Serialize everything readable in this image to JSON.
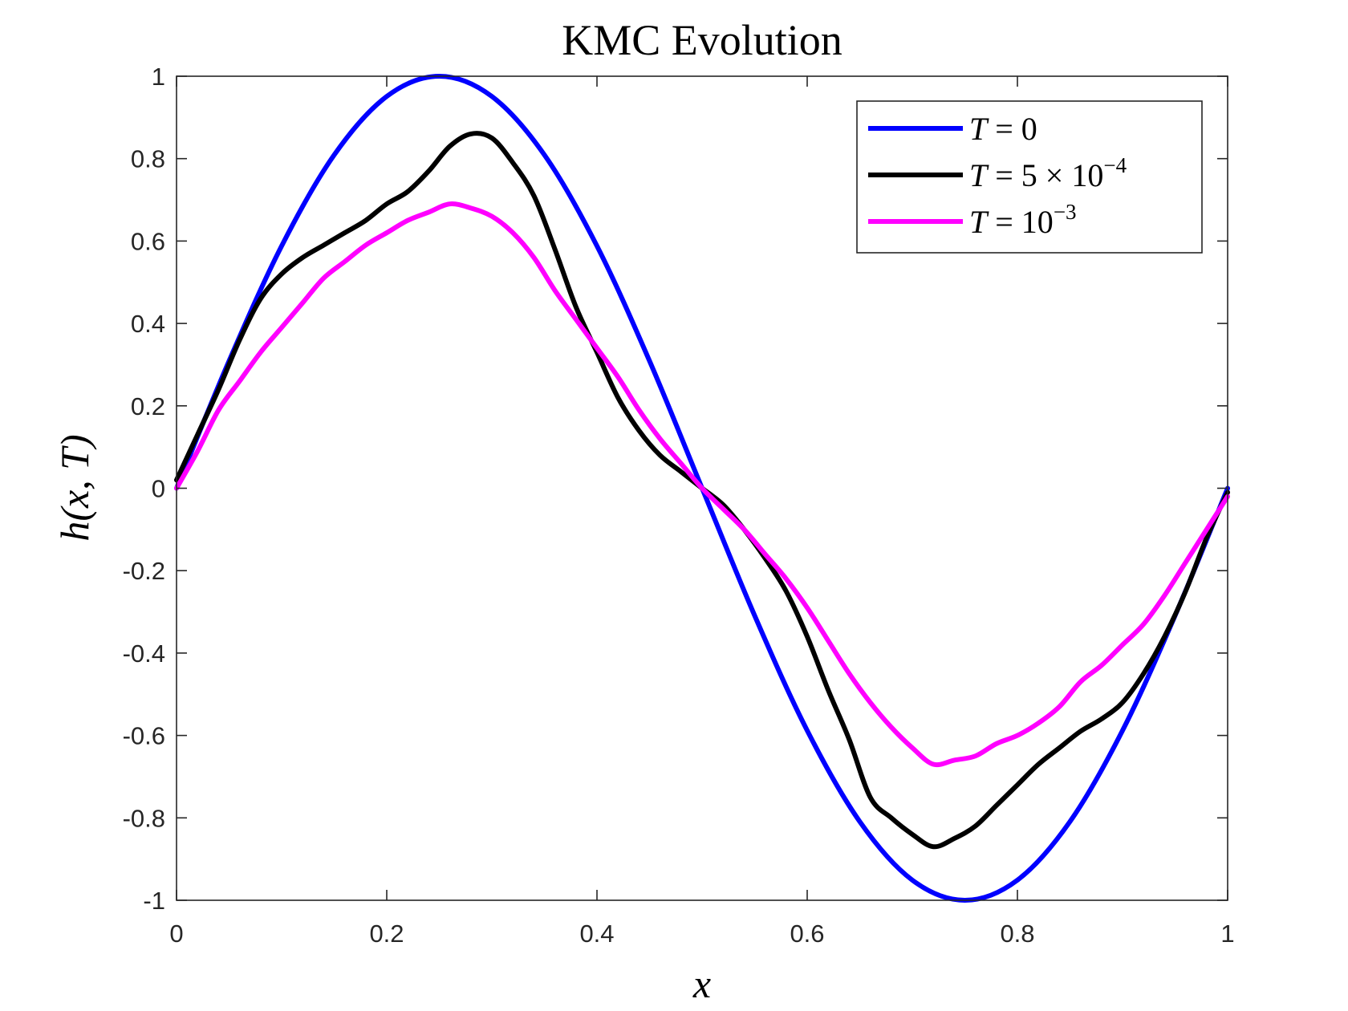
{
  "chart_data": {
    "type": "line",
    "title": "KMC Evolution",
    "xlabel": "x",
    "ylabel": "h(x, T)",
    "xlim": [
      0,
      1
    ],
    "ylim": [
      -1,
      1
    ],
    "xticks": [
      0,
      0.2,
      0.4,
      0.6,
      0.8,
      1
    ],
    "xtick_labels": [
      "0",
      "0.2",
      "0.4",
      "0.6",
      "0.8",
      "1"
    ],
    "yticks": [
      1,
      0.8,
      0.6,
      0.4,
      0.2,
      0,
      -0.2,
      -0.4,
      -0.6,
      -0.8,
      -1
    ],
    "ytick_labels": [
      "1",
      "0.8",
      "0.6",
      "0.4",
      "0.2",
      "0",
      "-0.2",
      "-0.4",
      "-0.6",
      "-0.8",
      "-1"
    ],
    "grid": false,
    "legend_position": "top-right",
    "series": [
      {
        "name": "T = 0",
        "legend": {
          "lhs": "T",
          "rel": " = ",
          "base": "0",
          "exp": ""
        },
        "color": "#0000ff",
        "x": [
          0,
          0.05,
          0.1,
          0.15,
          0.2,
          0.25,
          0.3,
          0.35,
          0.4,
          0.45,
          0.5,
          0.55,
          0.6,
          0.65,
          0.7,
          0.75,
          0.8,
          0.85,
          0.9,
          0.95,
          1
        ],
        "y": [
          0,
          0.309,
          0.588,
          0.809,
          0.951,
          1,
          0.951,
          0.809,
          0.588,
          0.309,
          0,
          -0.309,
          -0.588,
          -0.809,
          -0.951,
          -1,
          -0.951,
          -0.809,
          -0.588,
          -0.309,
          0
        ]
      },
      {
        "name": "T = 5 × 10^-4",
        "legend": {
          "lhs": "T",
          "rel": " = ",
          "base": "5 × 10",
          "exp": "−4"
        },
        "color": "#000000",
        "x": [
          0,
          0.02,
          0.04,
          0.06,
          0.08,
          0.1,
          0.12,
          0.14,
          0.16,
          0.18,
          0.2,
          0.22,
          0.24,
          0.26,
          0.28,
          0.3,
          0.32,
          0.34,
          0.36,
          0.38,
          0.4,
          0.42,
          0.44,
          0.46,
          0.48,
          0.5,
          0.52,
          0.54,
          0.56,
          0.58,
          0.6,
          0.62,
          0.64,
          0.66,
          0.68,
          0.7,
          0.72,
          0.74,
          0.76,
          0.78,
          0.8,
          0.82,
          0.84,
          0.86,
          0.88,
          0.9,
          0.92,
          0.94,
          0.96,
          0.98,
          1
        ],
        "y": [
          0.02,
          0.13,
          0.24,
          0.36,
          0.46,
          0.52,
          0.56,
          0.59,
          0.62,
          0.65,
          0.69,
          0.72,
          0.77,
          0.83,
          0.86,
          0.85,
          0.79,
          0.71,
          0.58,
          0.44,
          0.33,
          0.22,
          0.14,
          0.08,
          0.04,
          0.0,
          -0.04,
          -0.1,
          -0.17,
          -0.25,
          -0.36,
          -0.49,
          -0.61,
          -0.75,
          -0.8,
          -0.84,
          -0.87,
          -0.85,
          -0.82,
          -0.77,
          -0.72,
          -0.67,
          -0.63,
          -0.59,
          -0.56,
          -0.52,
          -0.45,
          -0.36,
          -0.25,
          -0.12,
          -0.01
        ]
      },
      {
        "name": "T = 10^-3",
        "legend": {
          "lhs": "T",
          "rel": " = ",
          "base": "10",
          "exp": "−3"
        },
        "color": "#ff00ff",
        "x": [
          0,
          0.02,
          0.04,
          0.06,
          0.08,
          0.1,
          0.12,
          0.14,
          0.16,
          0.18,
          0.2,
          0.22,
          0.24,
          0.26,
          0.28,
          0.3,
          0.32,
          0.34,
          0.36,
          0.38,
          0.4,
          0.42,
          0.44,
          0.46,
          0.48,
          0.5,
          0.52,
          0.54,
          0.56,
          0.58,
          0.6,
          0.62,
          0.64,
          0.66,
          0.68,
          0.7,
          0.72,
          0.74,
          0.76,
          0.78,
          0.8,
          0.82,
          0.84,
          0.86,
          0.88,
          0.9,
          0.92,
          0.94,
          0.96,
          0.98,
          1
        ],
        "y": [
          0.0,
          0.09,
          0.19,
          0.26,
          0.33,
          0.39,
          0.45,
          0.51,
          0.55,
          0.59,
          0.62,
          0.65,
          0.67,
          0.69,
          0.68,
          0.66,
          0.62,
          0.56,
          0.48,
          0.41,
          0.34,
          0.27,
          0.19,
          0.12,
          0.06,
          0.0,
          -0.05,
          -0.1,
          -0.16,
          -0.22,
          -0.29,
          -0.37,
          -0.45,
          -0.52,
          -0.58,
          -0.63,
          -0.67,
          -0.66,
          -0.65,
          -0.62,
          -0.6,
          -0.57,
          -0.53,
          -0.47,
          -0.43,
          -0.38,
          -0.33,
          -0.26,
          -0.18,
          -0.1,
          -0.02
        ]
      }
    ]
  }
}
